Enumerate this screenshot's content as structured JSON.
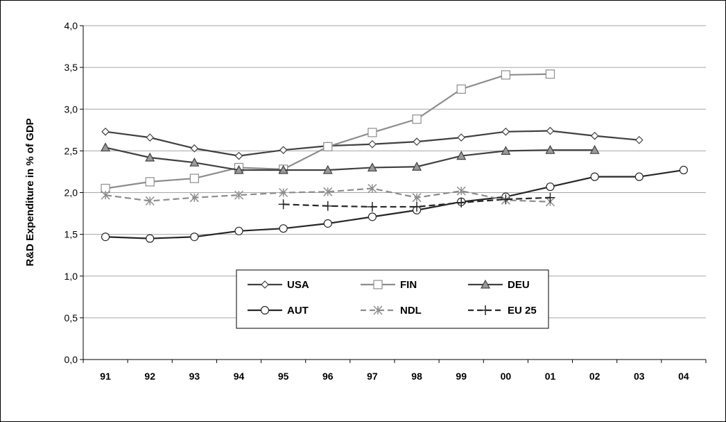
{
  "chart_data": {
    "type": "line",
    "ylabel": "R&D Expenditure in % of GDP",
    "xlabel": "",
    "ylim": [
      0,
      4
    ],
    "yticks": [
      "0,0",
      "0,5",
      "1,0",
      "1,5",
      "2,0",
      "2,5",
      "3,0",
      "3,5",
      "4,0"
    ],
    "categories": [
      "91",
      "92",
      "93",
      "94",
      "95",
      "96",
      "97",
      "98",
      "99",
      "00",
      "01",
      "02",
      "03",
      "04"
    ],
    "grid": "horizontal",
    "legend_position": "center-bottom",
    "series": [
      {
        "name": "USA",
        "color": "#404040",
        "marker": "diamond",
        "dash": "solid",
        "values": [
          2.73,
          2.66,
          2.53,
          2.44,
          2.51,
          2.56,
          2.58,
          2.61,
          2.66,
          2.73,
          2.74,
          2.68,
          2.63,
          null
        ]
      },
      {
        "name": "FIN",
        "color": "#8c8c8c",
        "marker": "square",
        "dash": "solid",
        "values": [
          2.05,
          2.13,
          2.17,
          2.3,
          2.28,
          2.55,
          2.72,
          2.88,
          3.24,
          3.41,
          3.42,
          null,
          null,
          null
        ]
      },
      {
        "name": "DEU",
        "color": "#404040",
        "marker": "triangle",
        "dash": "solid",
        "values": [
          2.54,
          2.42,
          2.36,
          2.27,
          2.27,
          2.27,
          2.3,
          2.31,
          2.44,
          2.5,
          2.51,
          2.51,
          null,
          null
        ]
      },
      {
        "name": "AUT",
        "color": "#262626",
        "marker": "circle",
        "dash": "solid",
        "values": [
          1.47,
          1.45,
          1.47,
          1.54,
          1.57,
          1.63,
          1.71,
          1.79,
          1.89,
          1.95,
          2.07,
          2.19,
          2.19,
          2.27
        ]
      },
      {
        "name": "NDL",
        "color": "#8c8c8c",
        "marker": "asterisk",
        "dash": "dashed",
        "values": [
          1.97,
          1.9,
          1.94,
          1.97,
          2.0,
          2.01,
          2.05,
          1.94,
          2.02,
          1.91,
          1.89,
          null,
          null,
          null
        ]
      },
      {
        "name": "EU 25",
        "color": "#262626",
        "marker": "plus",
        "dash": "dashed",
        "values": [
          null,
          null,
          null,
          null,
          1.86,
          1.84,
          1.83,
          1.83,
          1.88,
          1.92,
          1.94,
          null,
          null,
          null
        ]
      }
    ]
  }
}
